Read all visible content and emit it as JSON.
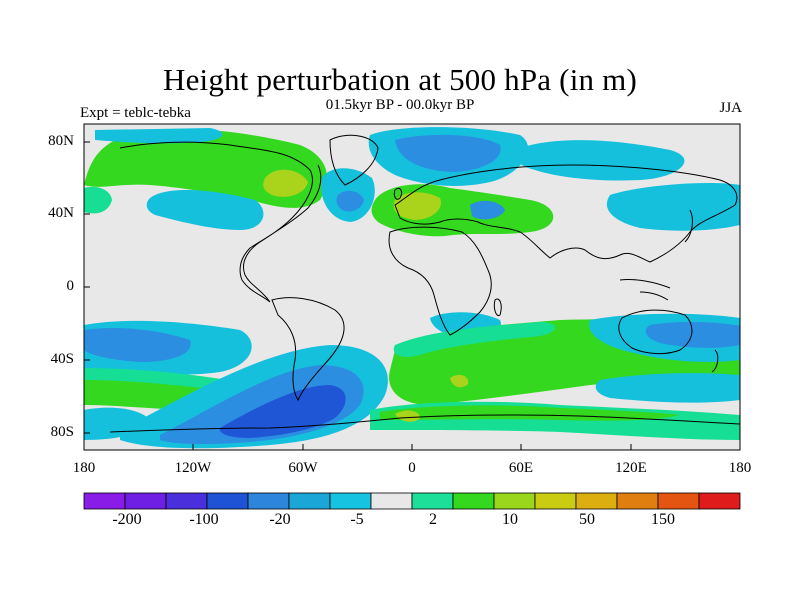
{
  "title": "Height perturbation at 500 hPa (in m)",
  "subtitle": "01.5kyr BP - 00.0kyr BP",
  "left_label": "Expt = teblc-tebka",
  "right_label": "JJA",
  "y_ticks": [
    "80N",
    "40N",
    "0",
    "40S",
    "80S"
  ],
  "x_ticks": [
    "180",
    "120W",
    "60W",
    "0",
    "60E",
    "120E",
    "180"
  ],
  "colorbar": {
    "labels": [
      "-200",
      "-100",
      "-20",
      "-5",
      "2",
      "10",
      "50",
      "150"
    ],
    "colors": [
      "#8a1ce8",
      "#6f1fe3",
      "#4a30dd",
      "#1f53d6",
      "#2d85dc",
      "#1ba6d8",
      "#16c3e0",
      "#e8e8e8",
      "#1ddf9a",
      "#33d81f",
      "#9ad71c",
      "#c9cc11",
      "#dcae10",
      "#e07f10",
      "#e55512",
      "#e01b1b"
    ]
  },
  "colors": {
    "ocean_neutral": "#e8e8e8",
    "light_blue": "#15c0dd",
    "mid_blue": "#2b8ee0",
    "dark_blue": "#1f56d6",
    "teal": "#16df95",
    "green": "#33d81f",
    "yellow_green": "#a9d41b",
    "yellow": "#c9cc11"
  }
}
